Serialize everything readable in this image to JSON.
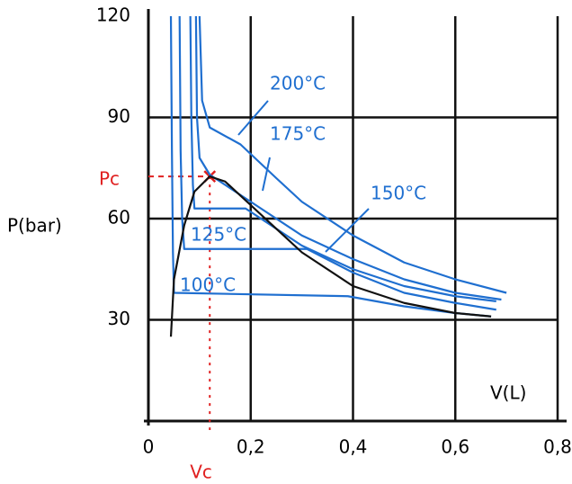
{
  "chart_data": {
    "type": "line",
    "y_label": "P(bar)",
    "x_label": "V(L)",
    "xlim": [
      0,
      0.8
    ],
    "ylim": [
      0,
      120
    ],
    "xticks": [
      0,
      {
        "value": 0.2,
        "label": "0,2"
      },
      {
        "value": 0.4,
        "label": "0,4"
      },
      {
        "value": 0.6,
        "label": "0,6"
      },
      {
        "value": 0.8,
        "label": "0,8"
      }
    ],
    "yticks": [
      30,
      60,
      90,
      120
    ],
    "grid": true,
    "series": [
      {
        "name": "100°C",
        "color": "#1f6fd0",
        "x": [
          0.044,
          0.046,
          0.048,
          0.05,
          0.39,
          0.5,
          0.6,
          0.67
        ],
        "values": [
          120,
          80,
          50,
          38,
          37,
          34,
          32,
          31
        ]
      },
      {
        "name": "125°C",
        "color": "#1f6fd0",
        "x": [
          0.061,
          0.063,
          0.066,
          0.07,
          0.31,
          0.4,
          0.5,
          0.6,
          0.68
        ],
        "values": [
          120,
          80,
          60,
          51,
          51,
          44,
          38,
          35,
          33
        ]
      },
      {
        "name": "150°C",
        "color": "#1f6fd0",
        "x": [
          0.082,
          0.084,
          0.087,
          0.09,
          0.19,
          0.3,
          0.4,
          0.5,
          0.6,
          0.68
        ],
        "values": [
          120,
          90,
          70,
          63,
          63,
          52,
          45,
          40,
          37,
          35.5
        ]
      },
      {
        "name": "175°C",
        "color": "#1f6fd0",
        "x": [
          0.093,
          0.095,
          0.1,
          0.12,
          0.2,
          0.3,
          0.4,
          0.5,
          0.6,
          0.69
        ],
        "values": [
          120,
          90,
          78,
          73,
          65,
          55,
          48,
          42,
          38,
          36
        ]
      },
      {
        "name": "200°C",
        "color": "#1f6fd0",
        "x": [
          0.1,
          0.105,
          0.12,
          0.18,
          0.25,
          0.3,
          0.4,
          0.5,
          0.6,
          0.7
        ],
        "values": [
          120,
          95,
          87,
          82,
          72,
          65,
          55,
          47,
          42,
          38
        ]
      },
      {
        "color": "#111111",
        "x": [
          0.044,
          0.05,
          0.07,
          0.09,
          0.12,
          0.15,
          0.2,
          0.3,
          0.4,
          0.5,
          0.6,
          0.67
        ],
        "values": [
          25,
          42,
          58,
          68,
          72.5,
          71,
          64,
          50,
          40,
          35,
          32,
          31
        ]
      }
    ],
    "critical_point": {
      "x": 0.12,
      "y": 72.5,
      "x_label": "Vc",
      "y_label": "Pc",
      "color": "#e02020"
    }
  }
}
